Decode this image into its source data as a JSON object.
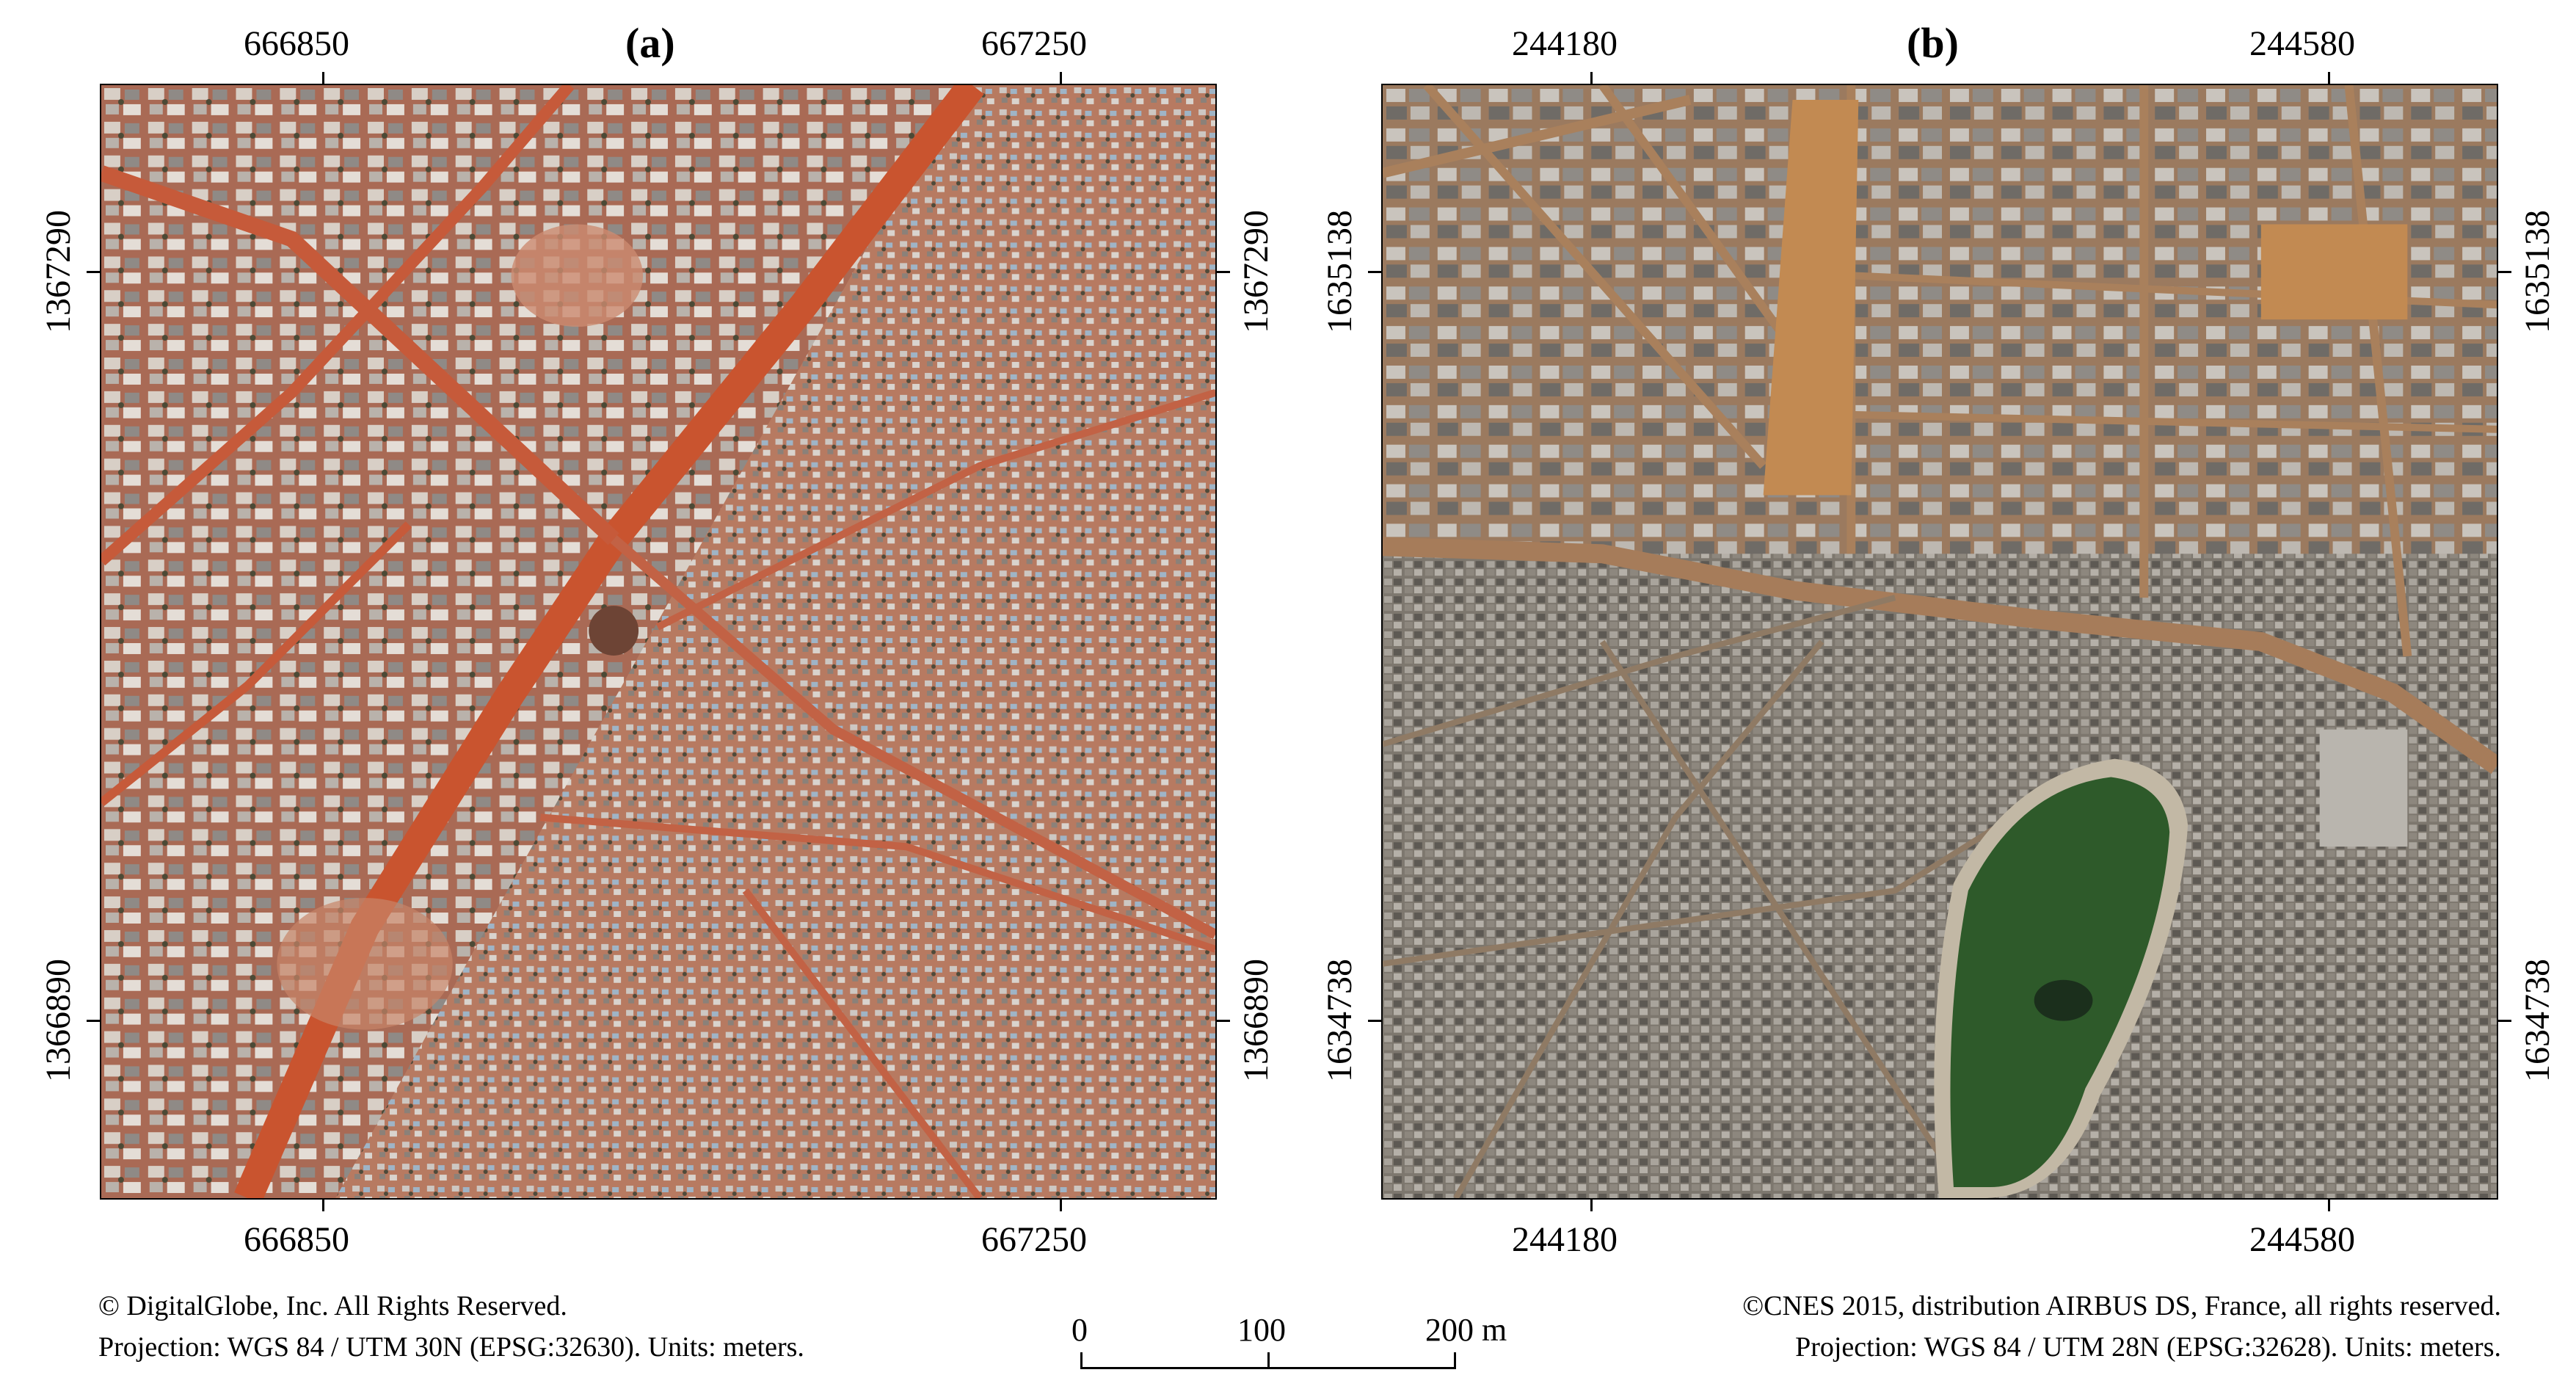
{
  "panel_a": {
    "title": "(a)",
    "top_ticks": [
      "666850",
      "667250"
    ],
    "bottom_ticks": [
      "666850",
      "667250"
    ],
    "left_ticks": [
      "1367290",
      "1366890"
    ],
    "right_ticks": [
      "1367290",
      "1366890"
    ],
    "credit": "© DigitalGlobe, Inc. All Rights Reserved.",
    "projection": "Projection:  WGS 84 / UTM 30N (EPSG:32630). Units: meters.",
    "colors": {
      "ground": "#b9745c",
      "road": "#c9542f",
      "roof_light": "#d9d0c8",
      "roof_blue": "#9fb6c9"
    }
  },
  "panel_b": {
    "title": "(b)",
    "top_ticks": [
      "244180",
      "244580"
    ],
    "bottom_ticks": [
      "244180",
      "244580"
    ],
    "left_ticks": [
      "1635138",
      "1634738"
    ],
    "right_ticks": [
      "1635138",
      "1634738"
    ],
    "credit": "©CNES 2015, distribution AIRBUS DS, France, all rights reserved.",
    "projection": "Projection:  WGS 84 / UTM 28N (EPSG:32628). Units: meters.",
    "colors": {
      "ground": "#8a8378",
      "road": "#a67c5a",
      "lake": "#2e5a2a",
      "sand": "#c28a52"
    }
  },
  "scale_bar": {
    "labels": [
      "0",
      "100",
      "200 m"
    ],
    "values_m": [
      0,
      100,
      200
    ]
  }
}
